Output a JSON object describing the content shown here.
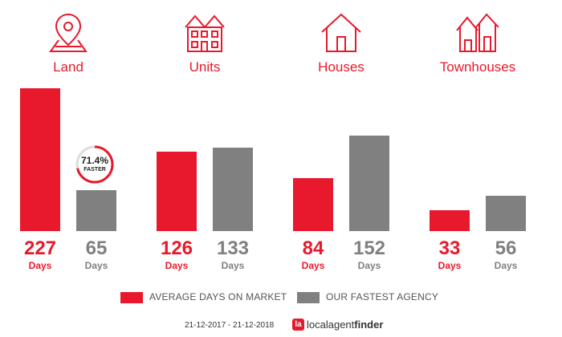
{
  "chart_data": {
    "type": "bar",
    "categories": [
      "Land",
      "Units",
      "Houses",
      "Townhouses"
    ],
    "series": [
      {
        "name": "AVERAGE DAYS ON MARKET",
        "values": [
          227,
          126,
          84,
          33
        ]
      },
      {
        "name": "OUR FASTEST AGENCY",
        "values": [
          65,
          133,
          152,
          56
        ]
      }
    ],
    "value_unit": "Days",
    "ylim": [
      0,
      227
    ],
    "legend": "bottom",
    "grid": false,
    "annotation": {
      "percent": "71.4%",
      "label": "FASTER",
      "category": "Land"
    }
  },
  "icons": [
    "map-pin-icon",
    "units-building-icon",
    "house-icon",
    "townhouses-icon"
  ],
  "colors": {
    "red": "#e8192c",
    "grey": "#808080"
  },
  "footer": {
    "date_range": "21-12-2017 - 21-12-2018",
    "logo_mark": "la",
    "logo_text_light": "localagent",
    "logo_text_bold": "finder"
  }
}
